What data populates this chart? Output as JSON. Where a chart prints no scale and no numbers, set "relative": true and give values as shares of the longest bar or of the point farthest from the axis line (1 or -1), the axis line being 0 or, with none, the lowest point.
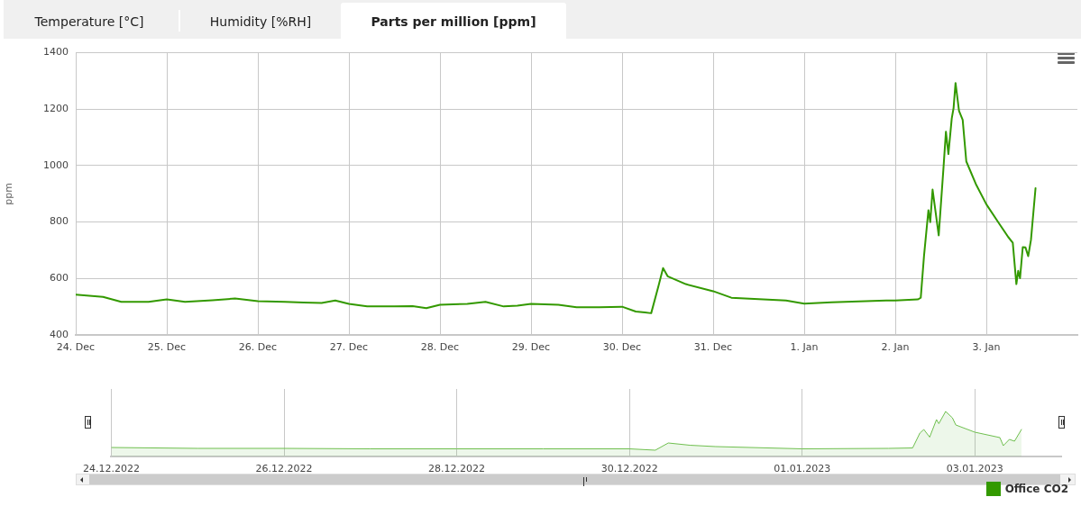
{
  "chart_data": [
    {
      "type": "line",
      "title": "Parts per million [ppm]",
      "annotations": [
        "Temperature [°C]",
        "Humidity [%RH]"
      ],
      "ylabel": "ppm",
      "x": [
        "2022-12-24T00:00",
        "2022-12-24T07:12",
        "2022-12-24T12:00",
        "2022-12-24T19:12",
        "2022-12-25T00:00",
        "2022-12-25T04:48",
        "2022-12-25T12:00",
        "2022-12-25T18:00",
        "2022-12-26T00:00",
        "2022-12-26T07:12",
        "2022-12-26T12:00",
        "2022-12-26T16:48",
        "2022-12-26T20:24",
        "2022-12-27T00:00",
        "2022-12-27T04:48",
        "2022-12-27T12:00",
        "2022-12-27T16:48",
        "2022-12-27T20:24",
        "2022-12-28T00:00",
        "2022-12-28T07:12",
        "2022-12-28T12:00",
        "2022-12-28T16:48",
        "2022-12-28T20:24",
        "2022-12-29T00:00",
        "2022-12-29T07:12",
        "2022-12-29T12:00",
        "2022-12-29T18:00",
        "2022-12-30T00:00",
        "2022-12-30T03:36",
        "2022-12-30T06:00",
        "2022-12-30T07:40",
        "2022-12-30T09:36",
        "2022-12-30T10:48",
        "2022-12-30T12:00",
        "2022-12-30T16:48",
        "2022-12-31T00:00",
        "2022-12-31T04:48",
        "2022-12-31T12:00",
        "2022-12-31T19:12",
        "2023-01-01T00:00",
        "2023-01-01T07:12",
        "2023-01-01T14:24",
        "2023-01-01T21:36",
        "2023-01-02T00:00",
        "2023-01-02T06:00",
        "2023-01-02T06:43",
        "2023-01-02T07:34",
        "2023-01-02T08:44",
        "2023-01-02T09:13",
        "2023-01-02T09:50",
        "2023-01-02T11:27",
        "2023-01-02T12:43",
        "2023-01-02T13:21",
        "2023-01-02T14:00",
        "2023-01-02T14:53",
        "2023-01-02T15:22",
        "2023-01-02T15:53",
        "2023-01-02T16:48",
        "2023-01-02T17:46",
        "2023-01-02T18:43",
        "2023-01-02T21:22",
        "2023-01-03T00:00",
        "2023-01-03T03:22",
        "2023-01-03T05:46",
        "2023-01-03T06:58",
        "2023-01-03T07:55",
        "2023-01-03T08:24",
        "2023-01-03T08:53",
        "2023-01-03T09:36",
        "2023-01-03T10:19",
        "2023-01-03T11:02",
        "2023-01-03T11:46",
        "2023-01-03T12:58"
      ],
      "series": [
        {
          "name": "Office CO2",
          "color": "#339900",
          "values": [
            543,
            535,
            517,
            517,
            526,
            517,
            523,
            529,
            520,
            517,
            515,
            513,
            522,
            510,
            501,
            501,
            502,
            495,
            507,
            510,
            517,
            501,
            504,
            510,
            507,
            498,
            498,
            500,
            483,
            480,
            477,
            574,
            637,
            608,
            580,
            555,
            532,
            527,
            522,
            511,
            516,
            519,
            522,
            522,
            526,
            532,
            679,
            842,
            800,
            915,
            753,
            994,
            1120,
            1041,
            1167,
            1204,
            1293,
            1194,
            1162,
            1015,
            931,
            863,
            795,
            747,
            727,
            580,
            627,
            601,
            711,
            710,
            679,
            737,
            920
          ]
        }
      ],
      "xlim": [
        "2022-12-24T00:00",
        "2023-01-04T00:00"
      ],
      "xticks": [
        {
          "value": "2022-12-24T00:00",
          "label": "24. Dec"
        },
        {
          "value": "2022-12-25T00:00",
          "label": "25. Dec"
        },
        {
          "value": "2022-12-26T00:00",
          "label": "26. Dec"
        },
        {
          "value": "2022-12-27T00:00",
          "label": "27. Dec"
        },
        {
          "value": "2022-12-28T00:00",
          "label": "28. Dec"
        },
        {
          "value": "2022-12-29T00:00",
          "label": "29. Dec"
        },
        {
          "value": "2022-12-30T00:00",
          "label": "30. Dec"
        },
        {
          "value": "2022-12-31T00:00",
          "label": "31. Dec"
        },
        {
          "value": "2023-01-01T00:00",
          "label": "1. Jan"
        },
        {
          "value": "2023-01-02T00:00",
          "label": "2. Jan"
        },
        {
          "value": "2023-01-03T00:00",
          "label": "3. Jan"
        }
      ],
      "ylim": [
        400,
        1400
      ],
      "yticks": [
        400,
        600,
        800,
        1000,
        1200,
        1400
      ],
      "grid": true,
      "legend": "bottom right",
      "marker": "none",
      "line_style": "solid"
    },
    {
      "type": "area",
      "relative": true,
      "x": [
        "2022-12-24T00:00",
        "2022-12-25T00:00",
        "2022-12-26T00:00",
        "2022-12-27T00:00",
        "2022-12-28T00:00",
        "2022-12-29T00:00",
        "2022-12-30T00:00",
        "2022-12-30T07:12",
        "2022-12-30T10:48",
        "2022-12-30T16:48",
        "2022-12-31T00:00",
        "2023-01-01T00:00",
        "2023-01-02T00:00",
        "2023-01-02T06:43",
        "2023-01-02T08:44",
        "2023-01-02T09:50",
        "2023-01-02T11:27",
        "2023-01-02T13:21",
        "2023-01-02T14:00",
        "2023-01-02T15:53",
        "2023-01-02T17:46",
        "2023-01-02T18:43",
        "2023-01-03T00:00",
        "2023-01-03T06:58",
        "2023-01-03T07:55",
        "2023-01-03T09:36",
        "2023-01-03T11:02",
        "2023-01-03T12:58"
      ],
      "series": [
        {
          "color": "#6fbf4f",
          "values": [
            0.2,
            0.18,
            0.18,
            0.17,
            0.17,
            0.17,
            0.17,
            0.14,
            0.3,
            0.25,
            0.22,
            0.17,
            0.18,
            0.19,
            0.52,
            0.6,
            0.43,
            0.82,
            0.73,
            1,
            0.86,
            0.7,
            0.54,
            0.42,
            0.24,
            0.38,
            0.34,
            0.6
          ]
        }
      ],
      "xlim": [
        "2022-12-24T00:00",
        "2023-01-04T00:00"
      ],
      "xticks": [
        {
          "value": "2022-12-24T00:00",
          "label": "24.12.2022"
        },
        {
          "value": "2022-12-26T00:00",
          "label": "26.12.2022"
        },
        {
          "value": "2022-12-28T00:00",
          "label": "28.12.2022"
        },
        {
          "value": "2022-12-30T00:00",
          "label": "30.12.2022"
        },
        {
          "value": "2023-01-01T00:00",
          "label": "01.01.2023"
        },
        {
          "value": "2023-01-03T00:00",
          "label": "03.01.2023"
        }
      ],
      "grid": "x",
      "tick_labels": "x",
      "marker": "none"
    }
  ]
}
